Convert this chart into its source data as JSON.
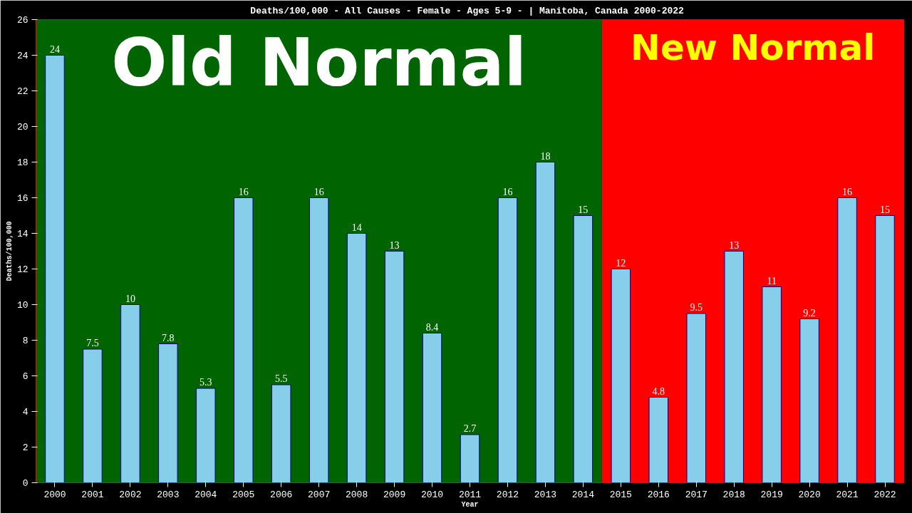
{
  "chart_data": {
    "type": "bar",
    "title": "Deaths/100,000 - All Causes - Female - Ages 5-9 -  | Manitoba, Canada 2000-2022",
    "xlabel": "Year",
    "ylabel": "Deaths/100,000",
    "categories": [
      "2000",
      "2001",
      "2002",
      "2003",
      "2004",
      "2005",
      "2006",
      "2007",
      "2008",
      "2009",
      "2010",
      "2011",
      "2012",
      "2013",
      "2014",
      "2015",
      "2016",
      "2017",
      "2018",
      "2019",
      "2020",
      "2021",
      "2022"
    ],
    "values": [
      24,
      7.5,
      10,
      7.8,
      5.3,
      16,
      5.5,
      16,
      14,
      13,
      8.4,
      2.7,
      16,
      18,
      15,
      12,
      4.8,
      9.5,
      13,
      11,
      9.2,
      16,
      15
    ],
    "color": "#87ceeb",
    "ylim": [
      0,
      26
    ],
    "yticks": [
      0,
      2,
      4,
      6,
      8,
      10,
      12,
      14,
      16,
      18,
      20,
      22,
      24,
      26
    ],
    "grid": false,
    "data_labels": true,
    "bands": [
      {
        "axis": "x",
        "from": "2000",
        "to": "2014",
        "label": "Old Normal",
        "color": "#006400"
      },
      {
        "axis": "x",
        "from": "2015",
        "to": "2022",
        "label": "New Normal",
        "color": "#ff0000"
      }
    ]
  }
}
